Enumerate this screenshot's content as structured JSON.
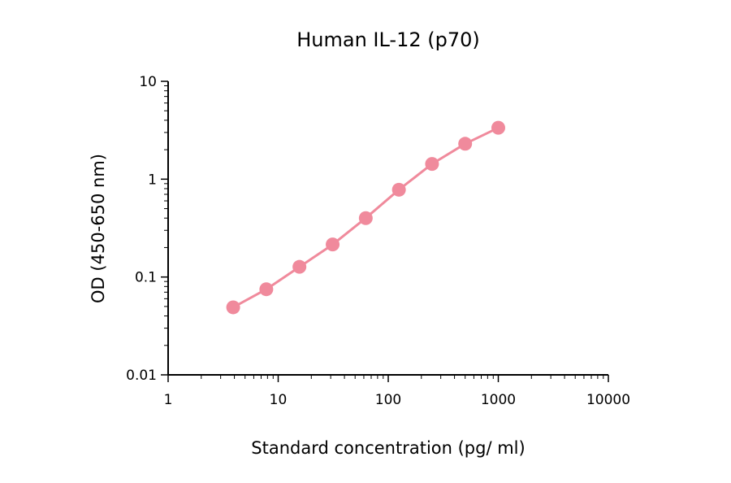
{
  "chart_data": {
    "type": "line",
    "title": "Human IL-12 (p70)",
    "xlabel": "Standard concentration (pg/ ml)",
    "ylabel": "OD (450-650 nm)",
    "x_scale": "log",
    "y_scale": "log",
    "xlim": [
      1,
      10000
    ],
    "ylim": [
      0.01,
      10
    ],
    "x_ticks": [
      {
        "value": 1,
        "label": "1"
      },
      {
        "value": 10,
        "label": "10"
      },
      {
        "value": 100,
        "label": "100"
      },
      {
        "value": 1000,
        "label": "1000"
      },
      {
        "value": 10000,
        "label": "10000"
      }
    ],
    "y_ticks": [
      {
        "value": 0.01,
        "label": "0.01"
      },
      {
        "value": 0.1,
        "label": "0.1"
      },
      {
        "value": 1,
        "label": "1"
      },
      {
        "value": 10,
        "label": "10"
      }
    ],
    "grid": false,
    "legend": "none",
    "series": [
      {
        "color": "#f08a9c",
        "points": [
          {
            "x": 3.9,
            "y": 0.049
          },
          {
            "x": 7.8,
            "y": 0.075
          },
          {
            "x": 15.6,
            "y": 0.127
          },
          {
            "x": 31.25,
            "y": 0.215
          },
          {
            "x": 62.5,
            "y": 0.4
          },
          {
            "x": 125,
            "y": 0.78
          },
          {
            "x": 250,
            "y": 1.43
          },
          {
            "x": 500,
            "y": 2.3
          },
          {
            "x": 1000,
            "y": 3.35
          }
        ]
      }
    ]
  }
}
